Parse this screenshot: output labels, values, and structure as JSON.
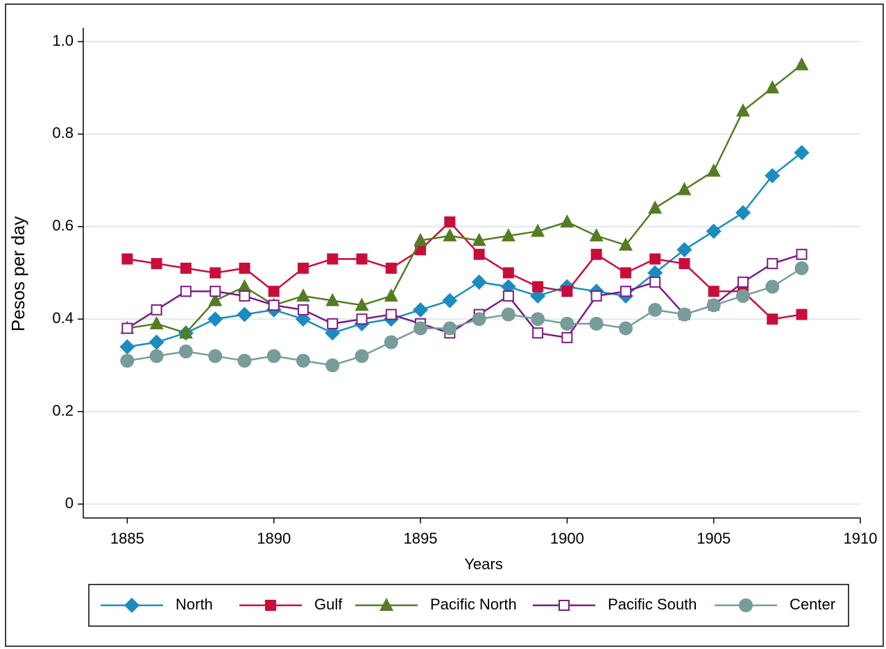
{
  "chart_data": {
    "type": "line",
    "y_label": "Pesos per day",
    "x_label": "Years",
    "x": [
      1885,
      1886,
      1887,
      1888,
      1889,
      1890,
      1891,
      1892,
      1893,
      1894,
      1895,
      1896,
      1897,
      1898,
      1899,
      1900,
      1901,
      1902,
      1903,
      1904,
      1905,
      1906,
      1907,
      1908
    ],
    "series": [
      {
        "name": "North",
        "color": "#1a8cc0",
        "marker": "diamond",
        "values": [
          0.34,
          0.35,
          0.37,
          0.4,
          0.41,
          0.42,
          0.4,
          0.37,
          0.39,
          0.4,
          0.42,
          0.44,
          0.48,
          0.47,
          0.45,
          0.47,
          0.46,
          0.45,
          0.5,
          0.55,
          0.59,
          0.63,
          0.71,
          0.76
        ]
      },
      {
        "name": "Gulf",
        "color": "#c90d3a",
        "marker": "square",
        "values": [
          0.53,
          0.52,
          0.51,
          0.5,
          0.51,
          0.46,
          0.51,
          0.53,
          0.53,
          0.51,
          0.55,
          0.61,
          0.54,
          0.5,
          0.47,
          0.46,
          0.54,
          0.5,
          0.53,
          0.52,
          0.46,
          0.46,
          0.4,
          0.41
        ]
      },
      {
        "name": "Pacific North",
        "color": "#547c23",
        "marker": "triangle",
        "values": [
          0.38,
          0.39,
          0.37,
          0.44,
          0.47,
          0.43,
          0.45,
          0.44,
          0.43,
          0.45,
          0.57,
          0.58,
          0.57,
          0.58,
          0.59,
          0.61,
          0.58,
          0.56,
          0.64,
          0.68,
          0.72,
          0.85,
          0.9,
          0.95
        ]
      },
      {
        "name": "Pacific South",
        "color": "#7b1a86",
        "marker": "hollow-square",
        "values": [
          0.38,
          0.42,
          0.46,
          0.46,
          0.45,
          0.43,
          0.42,
          0.39,
          0.4,
          0.41,
          0.39,
          0.37,
          0.41,
          0.45,
          0.37,
          0.36,
          0.45,
          0.46,
          0.48,
          0.41,
          0.43,
          0.48,
          0.52,
          0.54
        ]
      },
      {
        "name": "Center",
        "color": "#779c9a",
        "marker": "circle",
        "values": [
          0.31,
          0.32,
          0.33,
          0.32,
          0.31,
          0.32,
          0.31,
          0.3,
          0.32,
          0.35,
          0.38,
          0.38,
          0.4,
          0.41,
          0.4,
          0.39,
          0.39,
          0.38,
          0.42,
          0.41,
          0.43,
          0.45,
          0.47,
          0.51
        ]
      }
    ],
    "xlim": [
      1883.5,
      1910
    ],
    "xticks": [
      1885,
      1890,
      1895,
      1900,
      1905,
      1910
    ],
    "ylim": [
      -0.03,
      1.03
    ],
    "yticks": [
      0,
      0.2,
      0.4,
      0.6,
      0.8,
      {
        "value": 1,
        "label": "1.0"
      }
    ],
    "grid": true,
    "legend": "bottom"
  }
}
